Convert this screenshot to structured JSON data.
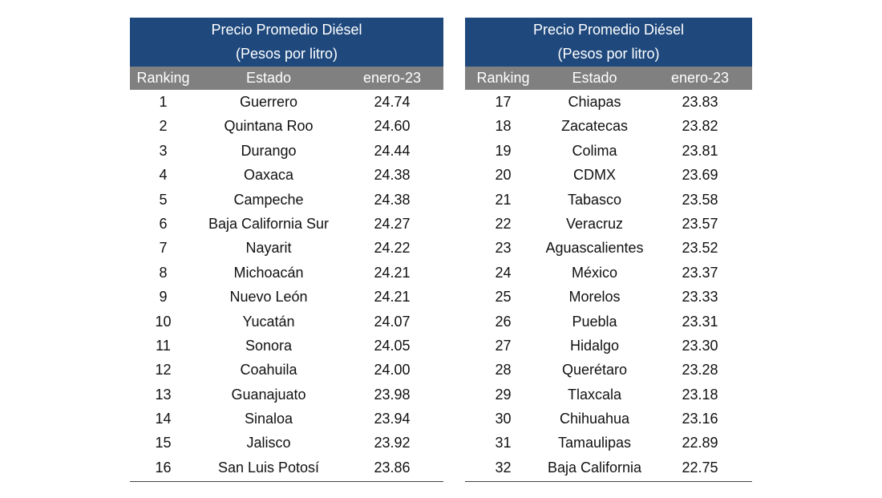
{
  "tables": [
    {
      "title": [
        "Precio Promedio Diésel",
        "(Pesos por litro)"
      ],
      "headers": [
        "Ranking",
        "Estado",
        "enero-23"
      ],
      "rows": [
        [
          1,
          "Guerrero",
          "24.74"
        ],
        [
          2,
          "Quintana Roo",
          "24.60"
        ],
        [
          3,
          "Durango",
          "24.44"
        ],
        [
          4,
          "Oaxaca",
          "24.38"
        ],
        [
          5,
          "Campeche",
          "24.38"
        ],
        [
          6,
          "Baja California Sur",
          "24.27"
        ],
        [
          7,
          "Nayarit",
          "24.22"
        ],
        [
          8,
          "Michoacán",
          "24.21"
        ],
        [
          9,
          "Nuevo León",
          "24.21"
        ],
        [
          10,
          "Yucatán",
          "24.07"
        ],
        [
          11,
          "Sonora",
          "24.05"
        ],
        [
          12,
          "Coahuila",
          "24.00"
        ],
        [
          13,
          "Guanajuato",
          "23.98"
        ],
        [
          14,
          "Sinaloa",
          "23.94"
        ],
        [
          15,
          "Jalisco",
          "23.92"
        ],
        [
          16,
          "San Luis Potosí",
          "23.86"
        ]
      ]
    },
    {
      "title": [
        "Precio Promedio Diésel",
        "(Pesos por litro)"
      ],
      "headers": [
        "Ranking",
        "Estado",
        "enero-23"
      ],
      "rows": [
        [
          17,
          "Chiapas",
          "23.83"
        ],
        [
          18,
          "Zacatecas",
          "23.82"
        ],
        [
          19,
          "Colima",
          "23.81"
        ],
        [
          20,
          "CDMX",
          "23.69"
        ],
        [
          21,
          "Tabasco",
          "23.58"
        ],
        [
          22,
          "Veracruz",
          "23.57"
        ],
        [
          23,
          "Aguascalientes",
          "23.52"
        ],
        [
          24,
          "México",
          "23.37"
        ],
        [
          25,
          "Morelos",
          "23.33"
        ],
        [
          26,
          "Puebla",
          "23.31"
        ],
        [
          27,
          "Hidalgo",
          "23.30"
        ],
        [
          28,
          "Querétaro",
          "23.28"
        ],
        [
          29,
          "Tlaxcala",
          "23.18"
        ],
        [
          30,
          "Chihuahua",
          "23.16"
        ],
        [
          31,
          "Tamaulipas",
          "22.89"
        ],
        [
          32,
          "Baja California",
          "22.75"
        ]
      ]
    }
  ]
}
